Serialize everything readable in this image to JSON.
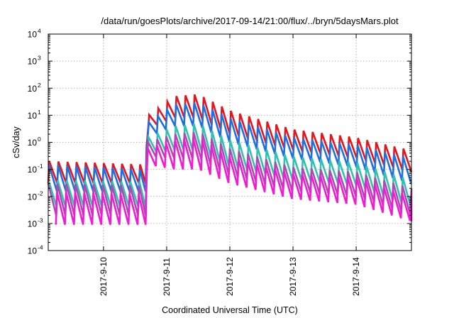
{
  "chart_data": {
    "type": "line",
    "title": "/data/run/goesPlots/archive/2017-09-14/21:00/flux/../bryn/5daysMars.plot",
    "xlabel": "Coordinated Universal Time (UTC)",
    "ylabel": "cSv/day",
    "y_scale": "log",
    "y_base_label": "10",
    "ylim": [
      0.0001,
      10000
    ],
    "y_ticks": [
      {
        "base": "10",
        "exp": "-4",
        "value": 0.0001
      },
      {
        "base": "10",
        "exp": "-3",
        "value": 0.001
      },
      {
        "base": "10",
        "exp": "-2",
        "value": 0.01
      },
      {
        "base": "10",
        "exp": "-1",
        "value": 0.1
      },
      {
        "base": "10",
        "exp": "0",
        "value": 1
      },
      {
        "base": "10",
        "exp": "1",
        "value": 10
      },
      {
        "base": "10",
        "exp": "2",
        "value": 100
      },
      {
        "base": "10",
        "exp": "3",
        "value": 1000
      },
      {
        "base": "10",
        "exp": "4",
        "value": 10000
      }
    ],
    "xlim": [
      "2017-09-09 03:00",
      "2017-09-14 21:00"
    ],
    "x_ticks": [
      "2017-9-10",
      "2017-9-11",
      "2017-9-12",
      "2017-9-13",
      "2017-9-14"
    ],
    "x_tick_dates": [
      "2017-09-10",
      "2017-09-11",
      "2017-09-12",
      "2017-09-13",
      "2017-09-14"
    ],
    "grid": true,
    "legend": "none",
    "sawtooth_period_hours": 3.45,
    "event_onset": "2017-09-10 16:00",
    "series": [
      {
        "color": "#e8141c",
        "envelope": [
          {
            "t": "2017-09-09 03:00",
            "min": 0.03,
            "max": 0.2
          },
          {
            "t": "2017-09-10 16:00",
            "min": 0.03,
            "max": 0.15
          },
          {
            "t": "2017-09-10 16:30",
            "min": 3.0,
            "max": 9.0
          },
          {
            "t": "2017-09-11 03:00",
            "min": 8.0,
            "max": 50
          },
          {
            "t": "2017-09-11 12:00",
            "min": 8.0,
            "max": 60
          },
          {
            "t": "2017-09-12 00:00",
            "min": 2.0,
            "max": 15
          },
          {
            "t": "2017-09-13 00:00",
            "min": 0.5,
            "max": 3
          },
          {
            "t": "2017-09-14 00:00",
            "min": 0.25,
            "max": 1.5
          },
          {
            "t": "2017-09-14 21:00",
            "min": 0.08,
            "max": 0.5
          }
        ]
      },
      {
        "color": "#1f6fe0",
        "envelope": [
          {
            "t": "2017-09-09 03:00",
            "min": 0.015,
            "max": 0.15
          },
          {
            "t": "2017-09-10 16:00",
            "min": 0.015,
            "max": 0.1
          },
          {
            "t": "2017-09-10 16:30",
            "min": 1.5,
            "max": 5.0
          },
          {
            "t": "2017-09-11 03:00",
            "min": 4.0,
            "max": 25
          },
          {
            "t": "2017-09-11 12:00",
            "min": 4.0,
            "max": 30
          },
          {
            "t": "2017-09-12 00:00",
            "min": 1.0,
            "max": 8
          },
          {
            "t": "2017-09-13 00:00",
            "min": 0.25,
            "max": 1.5
          },
          {
            "t": "2017-09-14 00:00",
            "min": 0.12,
            "max": 0.8
          },
          {
            "t": "2017-09-14 21:00",
            "min": 0.03,
            "max": 0.25
          }
        ]
      },
      {
        "color": "#2fc2b2",
        "envelope": [
          {
            "t": "2017-09-09 03:00",
            "min": 0.004,
            "max": 0.04
          },
          {
            "t": "2017-09-10 16:00",
            "min": 0.004,
            "max": 0.035
          },
          {
            "t": "2017-09-10 16:30",
            "min": 0.4,
            "max": 1.5
          },
          {
            "t": "2017-09-11 03:00",
            "min": 0.5,
            "max": 4
          },
          {
            "t": "2017-09-11 12:00",
            "min": 0.5,
            "max": 5
          },
          {
            "t": "2017-09-12 00:00",
            "min": 0.12,
            "max": 1.2
          },
          {
            "t": "2017-09-13 00:00",
            "min": 0.04,
            "max": 0.3
          },
          {
            "t": "2017-09-14 00:00",
            "min": 0.025,
            "max": 0.18
          },
          {
            "t": "2017-09-14 21:00",
            "min": 0.004,
            "max": 0.04
          }
        ]
      },
      {
        "color": "#a64fb0",
        "envelope": [
          {
            "t": "2017-09-09 03:00",
            "min": 0.002,
            "max": 0.03
          },
          {
            "t": "2017-09-10 16:00",
            "min": 0.002,
            "max": 0.025
          },
          {
            "t": "2017-09-10 16:30",
            "min": 0.3,
            "max": 1.0
          },
          {
            "t": "2017-09-11 03:00",
            "min": 0.25,
            "max": 2
          },
          {
            "t": "2017-09-11 12:00",
            "min": 0.25,
            "max": 2.5
          },
          {
            "t": "2017-09-12 00:00",
            "min": 0.06,
            "max": 0.6
          },
          {
            "t": "2017-09-13 00:00",
            "min": 0.015,
            "max": 0.12
          },
          {
            "t": "2017-09-14 00:00",
            "min": 0.01,
            "max": 0.08
          },
          {
            "t": "2017-09-14 21:00",
            "min": 0.002,
            "max": 0.02
          }
        ]
      },
      {
        "color": "#f01dd0",
        "envelope": [
          {
            "t": "2017-09-09 03:00",
            "min": 0.0009,
            "max": 0.015
          },
          {
            "t": "2017-09-10 16:00",
            "min": 0.0009,
            "max": 0.012
          },
          {
            "t": "2017-09-10 16:30",
            "min": 0.15,
            "max": 0.6
          },
          {
            "t": "2017-09-11 03:00",
            "min": 0.1,
            "max": 1.2
          },
          {
            "t": "2017-09-11 12:00",
            "min": 0.1,
            "max": 1.5
          },
          {
            "t": "2017-09-12 00:00",
            "min": 0.03,
            "max": 0.3
          },
          {
            "t": "2017-09-13 00:00",
            "min": 0.008,
            "max": 0.07
          },
          {
            "t": "2017-09-14 00:00",
            "min": 0.005,
            "max": 0.05
          },
          {
            "t": "2017-09-14 21:00",
            "min": 0.0012,
            "max": 0.01
          }
        ]
      }
    ]
  }
}
